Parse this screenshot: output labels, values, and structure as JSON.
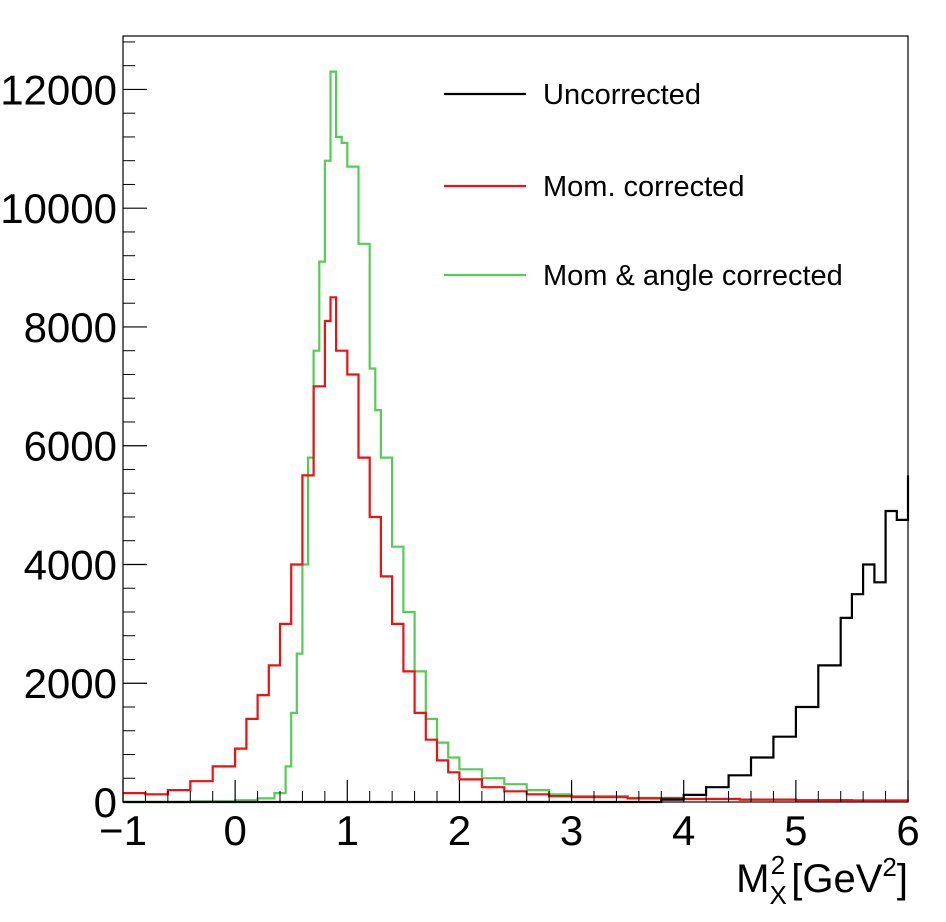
{
  "chart_data": {
    "type": "line",
    "xlabel": "M_X^2 [GeV^2]",
    "xlabel_parts": {
      "main": "M",
      "sub": "X",
      "sup": "2",
      "open": "[GeV",
      "unit_sup": "2",
      "close": "]"
    },
    "ylabel": "",
    "xlim": [
      -1,
      6
    ],
    "ylim": [
      0,
      12900
    ],
    "x_ticks": [
      "−1",
      "0",
      "1",
      "2",
      "3",
      "4",
      "5",
      "6"
    ],
    "x_tick_values": [
      -1,
      0,
      1,
      2,
      3,
      4,
      5,
      6
    ],
    "y_ticks": [
      "0",
      "2000",
      "4000",
      "6000",
      "8000",
      "10000",
      "12000"
    ],
    "y_tick_values": [
      0,
      2000,
      4000,
      6000,
      8000,
      10000,
      12000
    ],
    "grid": false,
    "legend_position": "top-right",
    "series": [
      {
        "name": "Uncorrected",
        "color": "#000000",
        "points": [
          [
            -1,
            0
          ],
          [
            3.5,
            0
          ],
          [
            3.8,
            40
          ],
          [
            4.0,
            120
          ],
          [
            4.2,
            250
          ],
          [
            4.4,
            450
          ],
          [
            4.6,
            750
          ],
          [
            4.8,
            1100
          ],
          [
            5.0,
            1600
          ],
          [
            5.2,
            2300
          ],
          [
            5.4,
            3100
          ],
          [
            5.5,
            3500
          ],
          [
            5.6,
            4000
          ],
          [
            5.7,
            3700
          ],
          [
            5.8,
            4900
          ],
          [
            5.9,
            4750
          ],
          [
            6.0,
            5500
          ]
        ]
      },
      {
        "name": "Mom. corrected",
        "color": "#ee1111",
        "points": [
          [
            -1,
            150
          ],
          [
            -0.8,
            130
          ],
          [
            -0.6,
            200
          ],
          [
            -0.4,
            350
          ],
          [
            -0.2,
            600
          ],
          [
            0.0,
            900
          ],
          [
            0.1,
            1400
          ],
          [
            0.2,
            1800
          ],
          [
            0.3,
            2300
          ],
          [
            0.4,
            3000
          ],
          [
            0.5,
            4000
          ],
          [
            0.6,
            5500
          ],
          [
            0.7,
            7000
          ],
          [
            0.8,
            8100
          ],
          [
            0.85,
            8500
          ],
          [
            0.9,
            7600
          ],
          [
            1.0,
            7200
          ],
          [
            1.1,
            5800
          ],
          [
            1.2,
            4800
          ],
          [
            1.3,
            3800
          ],
          [
            1.4,
            3000
          ],
          [
            1.5,
            2200
          ],
          [
            1.6,
            1500
          ],
          [
            1.7,
            1050
          ],
          [
            1.8,
            700
          ],
          [
            1.9,
            500
          ],
          [
            2.0,
            380
          ],
          [
            2.2,
            250
          ],
          [
            2.4,
            180
          ],
          [
            2.6,
            130
          ],
          [
            2.8,
            100
          ],
          [
            3.0,
            80
          ],
          [
            3.5,
            60
          ],
          [
            4.0,
            50
          ],
          [
            4.5,
            40
          ],
          [
            5.0,
            30
          ],
          [
            5.5,
            25
          ],
          [
            6.0,
            20
          ]
        ]
      },
      {
        "name": "Mom & angle corrected",
        "color": "#55cc55",
        "points": [
          [
            -1,
            0
          ],
          [
            -0.6,
            0
          ],
          [
            -0.4,
            10
          ],
          [
            0.0,
            30
          ],
          [
            0.2,
            60
          ],
          [
            0.35,
            150
          ],
          [
            0.45,
            600
          ],
          [
            0.5,
            1500
          ],
          [
            0.55,
            2500
          ],
          [
            0.6,
            4000
          ],
          [
            0.65,
            5800
          ],
          [
            0.7,
            7600
          ],
          [
            0.75,
            9100
          ],
          [
            0.8,
            10800
          ],
          [
            0.85,
            12300
          ],
          [
            0.9,
            11200
          ],
          [
            0.95,
            11100
          ],
          [
            1.0,
            10700
          ],
          [
            1.1,
            9400
          ],
          [
            1.2,
            7300
          ],
          [
            1.25,
            6600
          ],
          [
            1.3,
            5800
          ],
          [
            1.4,
            4300
          ],
          [
            1.5,
            3200
          ],
          [
            1.6,
            2200
          ],
          [
            1.7,
            1400
          ],
          [
            1.8,
            1000
          ],
          [
            1.9,
            750
          ],
          [
            2.0,
            550
          ],
          [
            2.2,
            400
          ],
          [
            2.4,
            300
          ],
          [
            2.6,
            200
          ],
          [
            2.8,
            130
          ],
          [
            3.0,
            100
          ],
          [
            3.5,
            70
          ],
          [
            4.0,
            50
          ],
          [
            4.5,
            40
          ],
          [
            5.0,
            30
          ],
          [
            5.5,
            25
          ],
          [
            6.0,
            20
          ]
        ]
      }
    ]
  }
}
